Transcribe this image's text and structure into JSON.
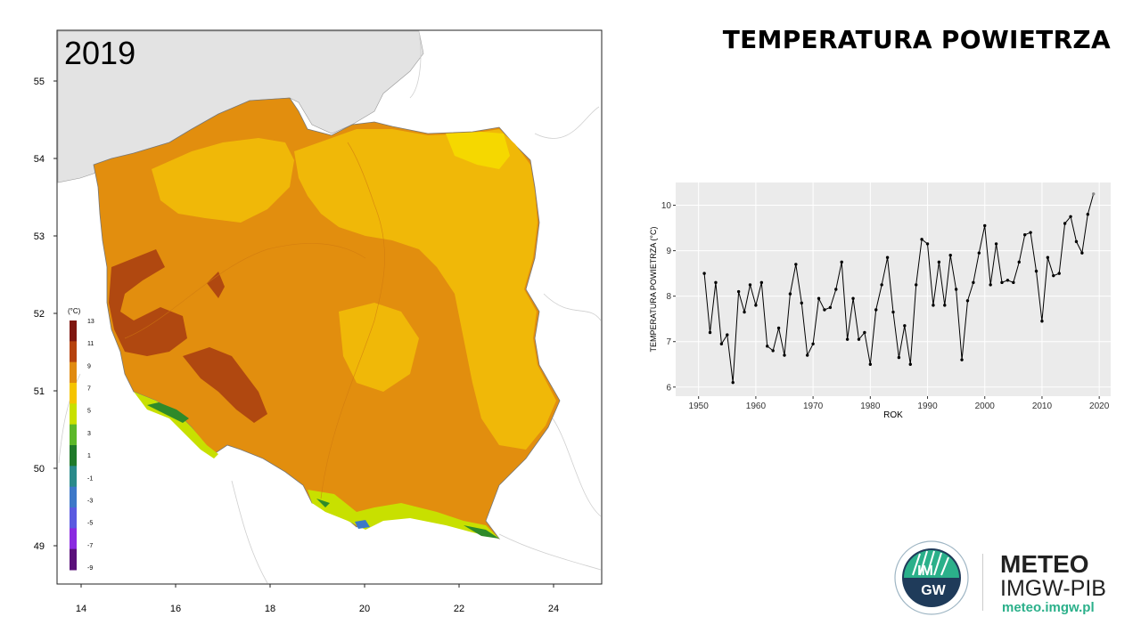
{
  "header": {
    "title": "TEMPERATURA POWIETRZA"
  },
  "map": {
    "year_label": "2019",
    "lat_ticks": [
      "55",
      "54",
      "53",
      "52",
      "51",
      "50",
      "49"
    ],
    "lon_ticks": [
      "14",
      "16",
      "18",
      "20",
      "22",
      "24"
    ],
    "legend": {
      "unit": "(°C)",
      "labels": [
        "13",
        "11",
        "9",
        "7",
        "5",
        "3",
        "1",
        "-1",
        "-3",
        "-5",
        "-7",
        "-9"
      ],
      "colors": [
        "#7f1710",
        "#b5420e",
        "#e08a10",
        "#f5c400",
        "#c8e000",
        "#5cb82a",
        "#1f7a2a",
        "#2a8a8a",
        "#3d78c8",
        "#5a5ae0",
        "#8a2ae0",
        "#5a107a"
      ]
    },
    "colors": {
      "sea": "#e3e3e3",
      "warm_dark": "#b04810",
      "warm": "#e28e0e",
      "mild": "#f0b808",
      "cool": "#f5d800"
    }
  },
  "chart_data": {
    "type": "line",
    "xlabel": "ROK",
    "ylabel": "TEMPERATURA POWIETRZA (°C)",
    "xlim": [
      1946,
      2022
    ],
    "ylim": [
      5.8,
      10.5
    ],
    "x_ticks": [
      "1950",
      "1960",
      "1970",
      "1980",
      "1990",
      "2000",
      "2010",
      "2020"
    ],
    "y_ticks": [
      "6",
      "7",
      "8",
      "9",
      "10"
    ],
    "grid": true,
    "series": [
      {
        "x": [
          1951,
          1952,
          1953,
          1954,
          1955,
          1956,
          1957,
          1958,
          1959,
          1960,
          1961,
          1962,
          1963,
          1964,
          1965,
          1966,
          1967,
          1968,
          1969,
          1970,
          1971,
          1972,
          1973,
          1974,
          1975,
          1976,
          1977,
          1978,
          1979,
          1980,
          1981,
          1982,
          1983,
          1984,
          1985,
          1986,
          1987,
          1988,
          1989,
          1990,
          1991,
          1992,
          1993,
          1994,
          1995,
          1996,
          1997,
          1998,
          1999,
          2000,
          2001,
          2002,
          2003,
          2004,
          2005,
          2006,
          2007,
          2008,
          2009,
          2010,
          2011,
          2012,
          2013,
          2014,
          2015,
          2016,
          2017,
          2018,
          2019
        ],
        "values": [
          8.5,
          7.2,
          8.3,
          6.95,
          7.15,
          6.1,
          8.1,
          7.65,
          8.25,
          7.8,
          8.3,
          6.9,
          6.8,
          7.3,
          6.7,
          8.05,
          8.7,
          7.85,
          6.7,
          6.95,
          7.95,
          7.7,
          7.75,
          8.15,
          8.75,
          7.05,
          7.95,
          7.05,
          7.2,
          6.5,
          7.7,
          8.25,
          8.85,
          7.65,
          6.65,
          7.35,
          6.5,
          8.25,
          9.25,
          9.15,
          7.8,
          8.75,
          7.8,
          8.9,
          8.15,
          6.6,
          7.9,
          8.3,
          8.95,
          9.55,
          8.25,
          9.15,
          8.3,
          8.35,
          8.3,
          8.75,
          9.35,
          9.4,
          8.55,
          7.45,
          8.85,
          8.45,
          8.5,
          9.6,
          9.75,
          9.2,
          8.95,
          9.8,
          10.25
        ]
      }
    ]
  },
  "branding": {
    "logo_text_top": "IM",
    "logo_text_bottom": "GW",
    "brand_title": "METEO",
    "brand_subtitle": "IMGW-PIB",
    "brand_url": "meteo.imgw.pl"
  }
}
